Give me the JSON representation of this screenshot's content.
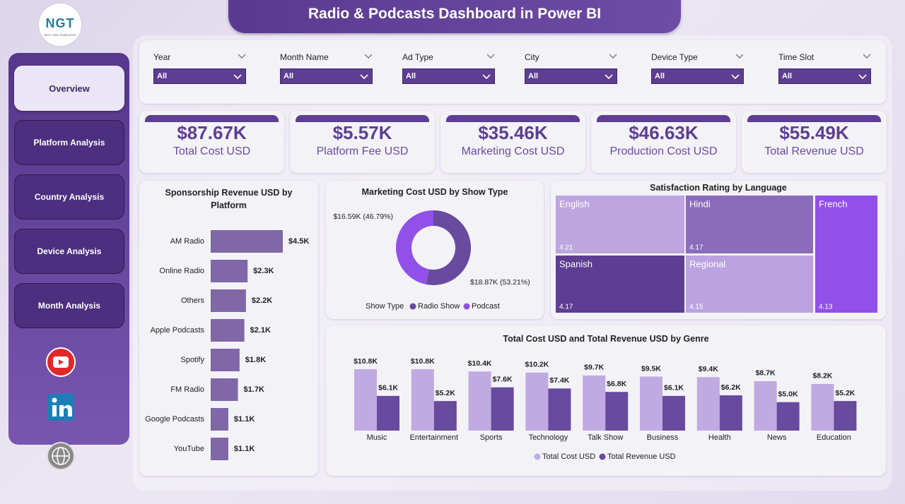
{
  "header": {
    "title": "Radio & Podcasts Dashboard in Power BI",
    "logo": "NGT",
    "logo_tagline": "NEXT GEN TEMPLATES"
  },
  "nav": [
    "Overview",
    "Platform Analysis",
    "Country Analysis",
    "Device Analysis",
    "Month Analysis"
  ],
  "filters": [
    {
      "label": "Year",
      "value": "All"
    },
    {
      "label": "Month Name",
      "value": "All"
    },
    {
      "label": "Ad Type",
      "value": "All"
    },
    {
      "label": "City",
      "value": "All"
    },
    {
      "label": "Device Type",
      "value": "All"
    },
    {
      "label": "Time Slot",
      "value": "All"
    }
  ],
  "kpis": [
    {
      "value": "$87.67K",
      "label": "Total Cost USD"
    },
    {
      "value": "$5.57K",
      "label": "Platform Fee USD"
    },
    {
      "value": "$35.46K",
      "label": "Marketing Cost USD"
    },
    {
      "value": "$46.63K",
      "label": "Production Cost USD"
    },
    {
      "value": "$55.49K",
      "label": "Total Revenue USD"
    }
  ],
  "chart_data": [
    {
      "type": "hbar",
      "title": "Sponsorship Revenue USD by Platform",
      "categories": [
        "AM Radio",
        "Online Radio",
        "Others",
        "Apple Podcasts",
        "Spotify",
        "FM Radio",
        "Google Podcasts",
        "YouTube"
      ],
      "values": [
        4500,
        2300,
        2200,
        2100,
        1800,
        1700,
        1100,
        1100
      ],
      "value_labels": [
        "$4.5K",
        "$2.3K",
        "$2.2K",
        "$2.1K",
        "$1.8K",
        "$1.7K",
        "$1.1K",
        "$1.1K"
      ],
      "color": "#7f67a8"
    },
    {
      "type": "donut",
      "title": "Marketing Cost USD by Show Type",
      "legend_title": "Show Type",
      "categories": [
        "Radio Show",
        "Podcast"
      ],
      "values": [
        18870,
        16590
      ],
      "value_labels": [
        "$18.87K (53.21%)",
        "$16.59K (46.79%)"
      ],
      "colors": [
        "#684a9e",
        "#9150e8"
      ]
    },
    {
      "type": "treemap",
      "title": "Satisfaction Rating by Language",
      "categories": [
        "English",
        "Hindi",
        "French",
        "Spanish",
        "Regional"
      ],
      "values": [
        4.21,
        4.17,
        4.13,
        4.17,
        4.15
      ],
      "colors": [
        "#bda6df",
        "#8a6cbb",
        "#9150e8",
        "#5d3e92",
        "#bba2e0"
      ]
    },
    {
      "type": "grouped-bar",
      "title": "Total Cost USD and Total Revenue USD by Genre",
      "categories": [
        "Music",
        "Entertainment",
        "Sports",
        "Technology",
        "Talk Show",
        "Business",
        "Health",
        "News",
        "Education"
      ],
      "series": [
        {
          "name": "Total Cost USD",
          "color": "#c0aae2",
          "values": [
            10800,
            10800,
            10400,
            10200,
            9700,
            9500,
            9400,
            8700,
            8200
          ],
          "value_labels": [
            "$10.8K",
            "$10.8K",
            "$10.4K",
            "$10.2K",
            "$9.7K",
            "$9.5K",
            "$9.4K",
            "$8.7K",
            "$8.2K"
          ]
        },
        {
          "name": "Total Revenue USD",
          "color": "#684a9e",
          "values": [
            6100,
            5200,
            7600,
            7400,
            6800,
            6100,
            6200,
            5000,
            5200
          ],
          "value_labels": [
            "$6.1K",
            "$5.2K",
            "$7.6K",
            "$7.4K",
            "$6.8K",
            "$6.1K",
            "$6.2K",
            "$5.0K",
            "$5.2K"
          ]
        }
      ]
    }
  ]
}
